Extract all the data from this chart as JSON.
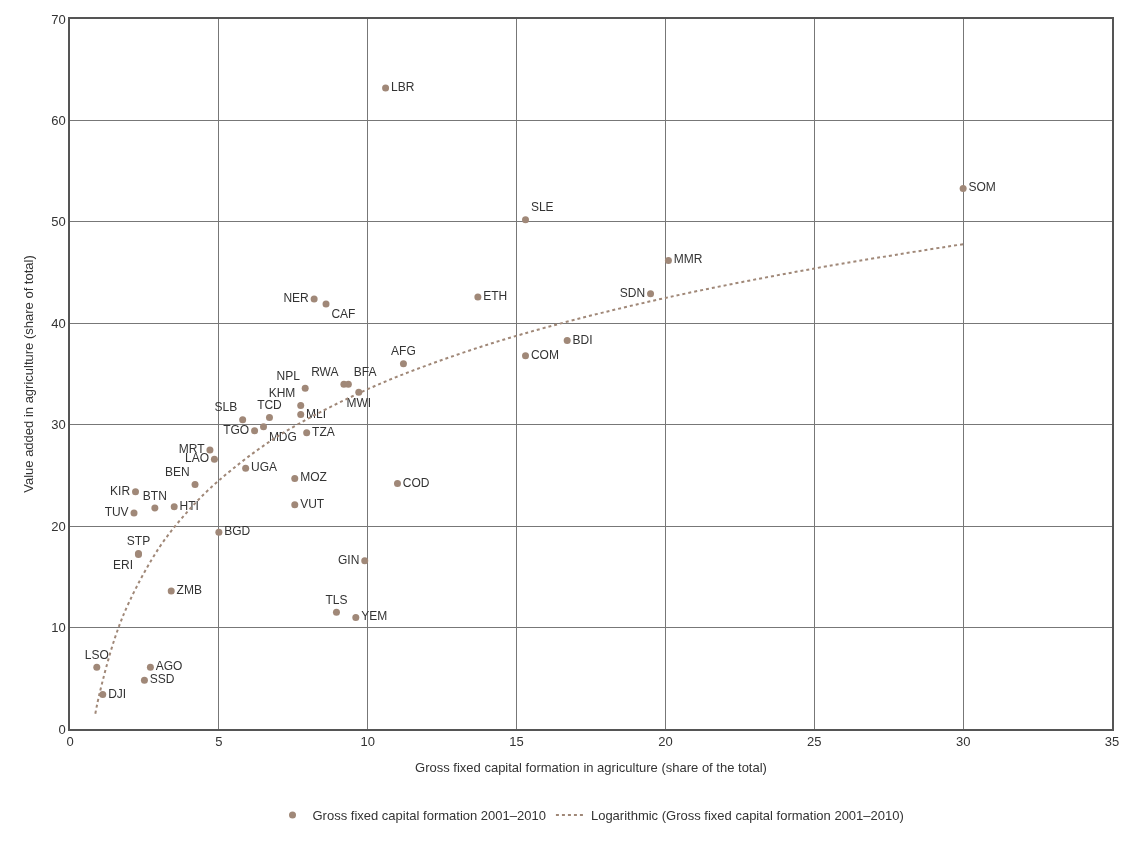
{
  "chart_data": {
    "type": "scatter",
    "xlabel": "Gross fixed capital formation in agriculture (share of the total)",
    "ylabel": "Value added in agriculture (share of total)",
    "xlim": [
      0,
      35
    ],
    "xticks": [
      0,
      5,
      10,
      15,
      20,
      25,
      30,
      35
    ],
    "ylim": [
      0,
      70
    ],
    "yticks": [
      0,
      10,
      20,
      30,
      40,
      50,
      60,
      70
    ],
    "grid": true,
    "legend": "bottom",
    "series": [
      {
        "name": "Gross fixed capital formation 2001–2010",
        "color": "#a08878",
        "marker": "circle",
        "x": [
          10.6,
          30.0,
          15.3,
          20.1,
          19.5,
          13.7,
          8.2,
          8.6,
          16.7,
          11.2,
          15.3,
          9.2,
          9.35,
          7.9,
          9.7,
          7.75,
          7.75,
          6.7,
          5.8,
          6.5,
          6.2,
          7.95,
          4.7,
          4.85,
          5.9,
          7.55,
          4.2,
          11.0,
          2.2,
          2.85,
          3.5,
          2.15,
          7.55,
          5.0,
          2.3,
          2.3,
          9.9,
          3.4,
          8.95,
          9.6,
          0.9,
          2.7,
          2.5,
          1.1
        ],
        "values": [
          63.2,
          53.3,
          50.2,
          46.2,
          42.9,
          42.6,
          42.4,
          41.9,
          38.3,
          36.0,
          36.8,
          34.0,
          34.0,
          33.6,
          33.2,
          31.9,
          31.0,
          30.7,
          30.5,
          29.8,
          29.4,
          29.2,
          27.5,
          26.6,
          25.7,
          24.7,
          24.1,
          24.2,
          23.4,
          21.8,
          21.9,
          21.3,
          22.1,
          19.4,
          17.3,
          17.2,
          16.6,
          13.6,
          11.5,
          11.0,
          6.1,
          6.1,
          4.8,
          3.4
        ],
        "value_labels": [
          "LBR",
          "SOM",
          "SLE",
          "MMR",
          "SDN",
          "ETH",
          "NER",
          "CAF",
          "BDI",
          "AFG",
          "COM",
          "RWA",
          "BFA",
          "NPL",
          "MWI",
          "KHM",
          "MLI",
          "TCD",
          "SLB",
          "MDG",
          "TGO",
          "TZA",
          "MRT",
          "LAO",
          "UGA",
          "MOZ",
          "BEN",
          "COD",
          "KIR",
          "BTN",
          "HTI",
          "TUV",
          "VUT",
          "BGD",
          "STP",
          "ERI",
          "GIN",
          "ZMB",
          "TLS",
          "YEM",
          "LSO",
          "AGO",
          "SSD",
          "DJI"
        ]
      },
      {
        "type": "line",
        "name": "Logarithmic (Gross fixed capital formation 2001–2010)",
        "color": "#a08878",
        "marker": "none",
        "line_style": "dotted",
        "x": [
          0.85,
          1,
          1.5,
          2,
          3,
          4,
          5,
          7,
          10,
          13,
          16,
          20,
          25,
          30
        ],
        "values": [
          1.5,
          3.6,
          8.9,
          12.6,
          17.9,
          21.6,
          24.5,
          28.9,
          33.5,
          36.9,
          39.6,
          42.5,
          45.4,
          47.8
        ]
      }
    ]
  }
}
